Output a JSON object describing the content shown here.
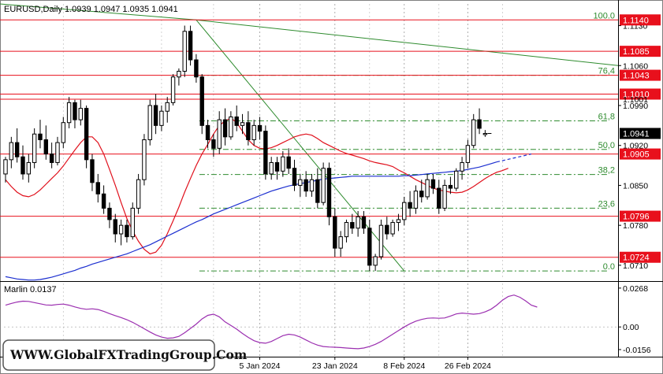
{
  "header": {
    "text": "EURUSD,Daily  1.0939 1.0947 1.0935 1.0941"
  },
  "osc_header": {
    "text": "Marlin 0.0137"
  },
  "watermark": {
    "text": "WWW.GlobalFXTradingGroup.Com"
  },
  "colors": {
    "resistance": "#e8101c",
    "fib": "#2e8b2e",
    "ma_red": "#e0101c",
    "ma_blue": "#1c2fd0",
    "oscillator": "#9b2fb0",
    "trend": "#2e8b2e"
  },
  "chart_data": [
    {
      "type": "candlestick",
      "symbol": "EURUSD",
      "timeframe": "Daily",
      "last_price": "1.0941",
      "ylim": [
        1.0685,
        1.1168
      ],
      "y_ticks": [
        "1.1130",
        "1.1060",
        "1.0990",
        "1.0920",
        "1.0850",
        "1.0780",
        "1.0710"
      ],
      "x_ticks": [
        "5 Jan 2024",
        "23 Jan 2024",
        "8 Feb 2024",
        "26 Feb 2024"
      ],
      "levels": [
        {
          "label": "1.1140",
          "value": 1.114
        },
        {
          "label": "1.1085",
          "value": 1.1085
        },
        {
          "label": "1.1043",
          "value": 1.1043
        },
        {
          "label": "1.1010",
          "value": 1.101
        },
        {
          "label": "1.1001",
          "value": 1.1001
        },
        {
          "label": "1.0905",
          "value": 1.0905
        },
        {
          "label": "1.0796",
          "value": 1.0796
        },
        {
          "label": "1.0724",
          "value": 1.0724
        }
      ],
      "fib_levels": [
        {
          "label": "100.0",
          "value": 1.114
        },
        {
          "label": "76,4",
          "value": 1.1043
        },
        {
          "label": "61,8",
          "value": 1.0963
        },
        {
          "label": "50,0",
          "value": 1.0913
        },
        {
          "label": "38,2",
          "value": 1.0869
        },
        {
          "label": "23,6",
          "value": 1.081
        },
        {
          "label": "0.0",
          "value": 1.07
        }
      ],
      "candles": [
        [
          1.087,
          1.09,
          1.0855,
          1.0895
        ],
        [
          1.0895,
          1.0935,
          1.088,
          1.0925
        ],
        [
          1.0925,
          1.095,
          1.089,
          1.09
        ],
        [
          1.09,
          1.092,
          1.086,
          1.087
        ],
        [
          1.087,
          1.0905,
          1.0855,
          1.089
        ],
        [
          1.089,
          1.095,
          1.088,
          1.094
        ],
        [
          1.094,
          1.0965,
          1.0915,
          1.093
        ],
        [
          1.093,
          1.0955,
          1.0895,
          1.0905
        ],
        [
          1.0905,
          1.0925,
          1.088,
          1.089
        ],
        [
          1.089,
          1.0935,
          1.0885,
          1.0925
        ],
        [
          1.0925,
          1.097,
          1.0915,
          1.096
        ],
        [
          1.096,
          1.1005,
          1.095,
          1.0995
        ],
        [
          1.0995,
          1.1,
          1.095,
          1.0965
        ],
        [
          1.0965,
          1.1,
          1.0955,
          1.0985
        ],
        [
          1.0985,
          1.099,
          1.088,
          1.0895
        ],
        [
          1.0895,
          1.0905,
          1.084,
          1.0855
        ],
        [
          1.0855,
          1.087,
          1.082,
          1.0835
        ],
        [
          1.0835,
          1.085,
          1.08,
          1.081
        ],
        [
          1.081,
          1.082,
          1.0775,
          1.079
        ],
        [
          1.079,
          1.08,
          1.075,
          1.0765
        ],
        [
          1.0765,
          1.079,
          1.0745,
          1.078
        ],
        [
          1.078,
          1.079,
          1.075,
          1.076
        ],
        [
          1.076,
          1.082,
          1.0755,
          1.081
        ],
        [
          1.081,
          1.087,
          1.08,
          1.086
        ],
        [
          1.086,
          1.094,
          1.085,
          1.093
        ],
        [
          1.093,
          1.1,
          1.092,
          1.099
        ],
        [
          1.099,
          1.101,
          1.094,
          1.0955
        ],
        [
          1.0955,
          1.099,
          1.0945,
          1.098
        ],
        [
          1.098,
          1.1005,
          1.096,
          1.0995
        ],
        [
          1.0995,
          1.1045,
          1.099,
          1.104
        ],
        [
          1.104,
          1.1055,
          1.1025,
          1.105
        ],
        [
          1.105,
          1.113,
          1.104,
          1.112
        ],
        [
          1.112,
          1.113,
          1.106,
          1.107
        ],
        [
          1.107,
          1.108,
          1.103,
          1.104
        ],
        [
          1.104,
          1.1045,
          1.094,
          1.0955
        ],
        [
          1.0955,
          1.0965,
          1.0915,
          1.093
        ],
        [
          1.093,
          1.094,
          1.09,
          1.0915
        ],
        [
          1.0915,
          1.098,
          1.0905,
          1.0965
        ],
        [
          1.0965,
          1.0985,
          1.092,
          1.0935
        ],
        [
          1.0935,
          1.098,
          1.093,
          1.097
        ],
        [
          1.097,
          1.099,
          1.0945,
          1.0955
        ],
        [
          1.0955,
          1.0975,
          1.094,
          1.096
        ],
        [
          1.096,
          1.098,
          1.092,
          1.093
        ],
        [
          1.093,
          1.0965,
          1.092,
          1.0955
        ],
        [
          1.0955,
          1.097,
          1.093,
          1.0945
        ],
        [
          1.0945,
          1.0955,
          1.086,
          1.087
        ],
        [
          1.087,
          1.09,
          1.086,
          1.089
        ],
        [
          1.089,
          1.09,
          1.086,
          1.0875
        ],
        [
          1.0875,
          1.091,
          1.0865,
          1.09
        ],
        [
          1.09,
          1.0915,
          1.087,
          1.088
        ],
        [
          1.088,
          1.0895,
          1.084,
          1.085
        ],
        [
          1.085,
          1.087,
          1.083,
          1.086
        ],
        [
          1.086,
          1.0875,
          1.083,
          1.084
        ],
        [
          1.084,
          1.087,
          1.083,
          1.086
        ],
        [
          1.086,
          1.088,
          1.081,
          1.082
        ],
        [
          1.082,
          1.089,
          1.0815,
          1.088
        ],
        [
          1.088,
          1.089,
          1.078,
          1.0795
        ],
        [
          1.0795,
          1.081,
          1.0725,
          1.074
        ],
        [
          1.074,
          1.077,
          1.0725,
          1.076
        ],
        [
          1.076,
          1.079,
          1.075,
          1.0785
        ],
        [
          1.0785,
          1.08,
          1.0765,
          1.0775
        ],
        [
          1.0775,
          1.0805,
          1.076,
          1.0795
        ],
        [
          1.0795,
          1.0805,
          1.0765,
          1.0775
        ],
        [
          1.0775,
          1.079,
          1.07,
          1.071
        ],
        [
          1.071,
          1.073,
          1.07,
          1.0725
        ],
        [
          1.0725,
          1.079,
          1.072,
          1.078
        ],
        [
          1.078,
          1.0795,
          1.0755,
          1.0765
        ],
        [
          1.0765,
          1.079,
          1.076,
          1.0785
        ],
        [
          1.0785,
          1.08,
          1.077,
          1.079
        ],
        [
          1.079,
          1.083,
          1.078,
          1.082
        ],
        [
          1.082,
          1.084,
          1.0795,
          1.081
        ],
        [
          1.081,
          1.085,
          1.08,
          1.084
        ],
        [
          1.084,
          1.086,
          1.082,
          1.083
        ],
        [
          1.083,
          1.087,
          1.0825,
          1.086
        ],
        [
          1.086,
          1.087,
          1.0835,
          1.0845
        ],
        [
          1.0845,
          1.086,
          1.08,
          1.081
        ],
        [
          1.081,
          1.086,
          1.0805,
          1.085
        ],
        [
          1.085,
          1.0865,
          1.0835,
          1.0845
        ],
        [
          1.0845,
          1.088,
          1.084,
          1.0875
        ],
        [
          1.0875,
          1.09,
          1.086,
          1.089
        ],
        [
          1.089,
          1.093,
          1.088,
          1.092
        ],
        [
          1.092,
          1.0975,
          1.0915,
          1.0965
        ],
        [
          1.0965,
          1.0985,
          1.094,
          1.095
        ],
        [
          1.0939,
          1.0947,
          1.0935,
          1.0941
        ]
      ],
      "ma_red": [
        1.086,
        1.0848,
        1.0838,
        1.0832,
        1.083,
        1.0834,
        1.0842,
        1.0852,
        1.0862,
        1.0872,
        1.0884,
        1.0898,
        1.0912,
        1.0925,
        1.0935,
        1.0935,
        1.0925,
        1.0905,
        1.0878,
        1.085,
        1.082,
        1.0792,
        1.077,
        1.0752,
        1.0738,
        1.073,
        1.0733,
        1.0745,
        1.0765,
        1.0788,
        1.0812,
        1.0838,
        1.0862,
        1.0885,
        1.0905,
        1.0922,
        1.094,
        1.0955,
        1.0963,
        1.0968,
        1.096,
        1.0945,
        1.093,
        1.092,
        1.0915,
        1.0914,
        1.0916,
        1.092,
        1.0925,
        1.093,
        1.0935,
        1.0938,
        1.094,
        1.0938,
        1.0932,
        1.0925,
        1.092,
        1.0915,
        1.091,
        1.0906,
        1.0903,
        1.09,
        1.0897,
        1.0893,
        1.089,
        1.0888,
        1.0886,
        1.0883,
        1.0877,
        1.0872,
        1.0866,
        1.086,
        1.0855,
        1.085,
        1.0845,
        1.0842,
        1.084,
        1.0838,
        1.0837,
        1.0838,
        1.0842,
        1.0848,
        1.0855,
        1.0862,
        1.0868,
        1.0873,
        1.0876,
        1.088
      ],
      "ma_blue": [
        1.069,
        1.0688,
        1.0686,
        1.0685,
        1.0684,
        1.0684,
        1.0685,
        1.0687,
        1.0689,
        1.0692,
        1.0695,
        1.0698,
        1.0701,
        1.0705,
        1.0708,
        1.0712,
        1.0715,
        1.0718,
        1.0721,
        1.0724,
        1.0727,
        1.073,
        1.0734,
        1.0738,
        1.0742,
        1.0746,
        1.0751,
        1.0756,
        1.0761,
        1.0766,
        1.0771,
        1.0776,
        1.0781,
        1.0786,
        1.079,
        1.0795,
        1.08,
        1.0804,
        1.0808,
        1.0812,
        1.0816,
        1.082,
        1.0824,
        1.0828,
        1.0832,
        1.0836,
        1.084,
        1.0843,
        1.0846,
        1.0849,
        1.0851,
        1.0853,
        1.0855,
        1.0857,
        1.0859,
        1.0861,
        1.0862,
        1.0863,
        1.0864,
        1.0865,
        1.0866,
        1.0866,
        1.0866,
        1.0866,
        1.0866,
        1.0866,
        1.0866,
        1.0866,
        1.0866,
        1.0867,
        1.0867,
        1.0868,
        1.0869,
        1.087,
        1.0871,
        1.0872,
        1.0873,
        1.0874,
        1.0875,
        1.0876,
        1.0878,
        1.088,
        1.0882,
        1.0885,
        1.0888,
        1.0891
      ],
      "ma_blue_projection": [
        1.0891,
        1.0905
      ]
    },
    {
      "type": "line",
      "name": "Marlin",
      "value_label": "0.0137",
      "ylim": [
        -0.0205,
        0.03
      ],
      "y_ticks": [
        "0.0268",
        "0.00",
        "-0.0156"
      ],
      "values": [
        0.015,
        0.0162,
        0.0172,
        0.0178,
        0.0176,
        0.0168,
        0.016,
        0.0152,
        0.015,
        0.0155,
        0.0158,
        0.015,
        0.0138,
        0.0128,
        0.0122,
        0.0125,
        0.012,
        0.0108,
        0.0092,
        0.0078,
        0.0065,
        0.005,
        0.0032,
        0.001,
        -0.0012,
        -0.0035,
        -0.0055,
        -0.007,
        -0.0078,
        -0.0075,
        -0.0065,
        -0.004,
        -0.001,
        0.002,
        0.0055,
        0.008,
        0.0088,
        0.007,
        0.0035,
        0.001,
        -0.0015,
        -0.0045,
        -0.0072,
        -0.0095,
        -0.0108,
        -0.0112,
        -0.01,
        -0.008,
        -0.006,
        -0.005,
        -0.0055,
        -0.007,
        -0.009,
        -0.011,
        -0.0125,
        -0.0135,
        -0.0138,
        -0.014,
        -0.0142,
        -0.0145,
        -0.0148,
        -0.015,
        -0.0145,
        -0.0135,
        -0.012,
        -0.01,
        -0.0075,
        -0.005,
        -0.0025,
        0.0,
        0.0022,
        0.004,
        0.0052,
        0.006,
        0.0062,
        0.006,
        0.0062,
        0.0075,
        0.009,
        0.0096,
        0.0092,
        0.0088,
        0.0092,
        0.0104,
        0.0122,
        0.015,
        0.0185,
        0.021,
        0.022,
        0.0205,
        0.018,
        0.015,
        0.0137
      ]
    }
  ]
}
